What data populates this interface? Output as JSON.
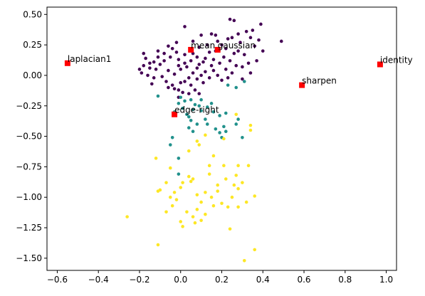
{
  "chart_data": {
    "type": "scatter",
    "title": "",
    "xlabel": "",
    "ylabel": "",
    "xlim": [
      -0.65,
      1.05
    ],
    "ylim": [
      -1.6,
      0.56
    ],
    "xticks": [
      -0.6,
      -0.4,
      -0.2,
      0.0,
      0.2,
      0.4,
      0.6,
      0.8,
      1.0
    ],
    "yticks": [
      -1.5,
      -1.25,
      -1.0,
      -0.75,
      -0.5,
      -0.25,
      0.0,
      0.25,
      0.5
    ],
    "grid": false,
    "legend": "none",
    "colors": {
      "purple": "#440154",
      "teal": "#21918c",
      "yellow": "#fde725",
      "marker": "#ff0000"
    },
    "series": [
      {
        "color": "purple",
        "points": [
          [
            0.24,
            0.46
          ],
          [
            0.26,
            0.45
          ],
          [
            0.39,
            0.42
          ],
          [
            0.35,
            0.37
          ],
          [
            0.49,
            0.28
          ],
          [
            0.15,
            0.34
          ],
          [
            0.1,
            0.33
          ],
          [
            0.02,
            0.4
          ],
          [
            0.17,
            0.33
          ],
          [
            0.25,
            0.31
          ],
          [
            0.28,
            0.34
          ],
          [
            0.32,
            0.36
          ],
          [
            0.2,
            0.25
          ],
          [
            0.18,
            0.28
          ],
          [
            0.22,
            0.22
          ],
          [
            0.28,
            0.2
          ],
          [
            0.31,
            0.17
          ],
          [
            0.36,
            0.24
          ],
          [
            0.4,
            0.2
          ],
          [
            0.33,
            0.1
          ],
          [
            0.3,
            0.07
          ],
          [
            0.37,
            0.12
          ],
          [
            0.34,
            0.02
          ],
          [
            0.3,
            -0.03
          ],
          [
            0.25,
            0.02
          ],
          [
            0.22,
            0.05
          ],
          [
            0.15,
            0.08
          ],
          [
            0.12,
            0.03
          ],
          [
            0.08,
            0.06
          ],
          [
            0.05,
            0.12
          ],
          [
            0.02,
            0.17
          ],
          [
            -0.02,
            0.19
          ],
          [
            -0.05,
            0.15
          ],
          [
            -0.08,
            0.12
          ],
          [
            -0.1,
            0.09
          ],
          [
            -0.12,
            0.05
          ],
          [
            -0.15,
            0.1
          ],
          [
            -0.17,
            0.14
          ],
          [
            -0.11,
            0.2
          ],
          [
            -0.08,
            0.18
          ],
          [
            -0.04,
            0.22
          ],
          [
            -0.01,
            0.13
          ],
          [
            0.03,
            0.07
          ],
          [
            0.06,
            0.02
          ],
          [
            0.09,
            0.09
          ],
          [
            0.12,
            0.14
          ],
          [
            0.16,
            0.13
          ],
          [
            0.19,
            0.1
          ],
          [
            0.21,
            0.15
          ],
          [
            0.24,
            0.12
          ],
          [
            0.27,
            0.08
          ],
          [
            0.26,
            0.18
          ],
          [
            0.14,
            0.19
          ],
          [
            0.09,
            0.23
          ],
          [
            0.06,
            0.18
          ],
          [
            0.0,
            0.05
          ],
          [
            -0.03,
            0.01
          ],
          [
            -0.06,
            0.04
          ],
          [
            -0.09,
            -0.01
          ],
          [
            -0.13,
            -0.02
          ],
          [
            -0.16,
            0.0
          ],
          [
            -0.19,
            0.02
          ],
          [
            -0.14,
            -0.07
          ],
          [
            -0.18,
            0.08
          ],
          [
            -0.07,
            -0.05
          ],
          [
            -0.04,
            -0.08
          ],
          [
            -0.01,
            -0.12
          ],
          [
            0.02,
            -0.05
          ],
          [
            0.05,
            -0.08
          ],
          [
            0.08,
            -0.03
          ],
          [
            0.11,
            -0.06
          ],
          [
            0.14,
            -0.02
          ],
          [
            0.18,
            0.0
          ],
          [
            0.2,
            -0.04
          ],
          [
            0.23,
            -0.02
          ],
          [
            0.16,
            0.04
          ],
          [
            0.1,
            0.0
          ],
          [
            0.04,
            -0.02
          ],
          [
            0.0,
            -0.06
          ],
          [
            -0.03,
            -0.11
          ],
          [
            -0.06,
            -0.1
          ],
          [
            0.01,
            -0.14
          ],
          [
            0.04,
            -0.15
          ],
          [
            0.07,
            -0.12
          ],
          [
            0.09,
            -0.15
          ],
          [
            -0.01,
            -0.18
          ],
          [
            0.06,
            0.28
          ],
          [
            0.13,
            0.25
          ],
          [
            0.17,
            0.2
          ],
          [
            0.23,
            0.3
          ],
          [
            0.29,
            0.27
          ],
          [
            0.34,
            0.31
          ],
          [
            0.38,
            0.29
          ],
          [
            -0.02,
            0.27
          ],
          [
            -0.06,
            0.24
          ],
          [
            -0.11,
            0.15
          ],
          [
            -0.13,
            0.11
          ],
          [
            -0.18,
            0.18
          ],
          [
            -0.2,
            0.05
          ],
          [
            -0.15,
            0.06
          ],
          [
            0.08,
            0.15
          ],
          [
            0.02,
            0.1
          ],
          [
            -0.01,
            0.08
          ],
          [
            0.11,
            0.11
          ]
        ]
      },
      {
        "color": "teal",
        "points": [
          [
            -0.11,
            -0.17
          ],
          [
            0.31,
            -0.05
          ],
          [
            0.23,
            -0.08
          ],
          [
            0.27,
            -0.1
          ],
          [
            -0.01,
            -0.23
          ],
          [
            0.02,
            -0.21
          ],
          [
            0.05,
            -0.2
          ],
          [
            0.07,
            -0.24
          ],
          [
            0.09,
            -0.25
          ],
          [
            0.1,
            -0.29
          ],
          [
            0.13,
            -0.26
          ],
          [
            0.16,
            -0.3
          ],
          [
            0.19,
            -0.33
          ],
          [
            0.22,
            -0.31
          ],
          [
            0.06,
            -0.28
          ],
          [
            0.03,
            -0.32
          ],
          [
            0.01,
            -0.27
          ],
          [
            -0.03,
            -0.3
          ],
          [
            0.05,
            -0.37
          ],
          [
            0.08,
            -0.4
          ],
          [
            0.04,
            -0.43
          ],
          [
            0.06,
            -0.46
          ],
          [
            0.13,
            -0.4
          ],
          [
            0.17,
            -0.44
          ],
          [
            0.19,
            -0.47
          ],
          [
            0.22,
            -0.46
          ],
          [
            0.2,
            -0.51
          ],
          [
            0.3,
            -0.51
          ],
          [
            0.27,
            -0.4
          ],
          [
            0.28,
            -0.36
          ],
          [
            0.21,
            -0.42
          ],
          [
            -0.04,
            -0.51
          ],
          [
            -0.05,
            -0.57
          ],
          [
            -0.01,
            -0.68
          ],
          [
            -0.01,
            -0.81
          ],
          [
            0.1,
            -0.2
          ],
          [
            0.15,
            -0.23
          ],
          [
            0.0,
            -0.18
          ],
          [
            0.04,
            -0.34
          ],
          [
            0.12,
            -0.36
          ]
        ]
      },
      {
        "color": "yellow",
        "points": [
          [
            0.27,
            -0.32
          ],
          [
            0.34,
            -0.41
          ],
          [
            0.34,
            -0.45
          ],
          [
            0.12,
            -0.49
          ],
          [
            0.21,
            -0.52
          ],
          [
            0.08,
            -0.54
          ],
          [
            0.09,
            -0.57
          ],
          [
            0.04,
            -0.62
          ],
          [
            0.16,
            -0.66
          ],
          [
            0.14,
            -0.74
          ],
          [
            -0.12,
            -0.68
          ],
          [
            -0.05,
            -0.76
          ],
          [
            0.14,
            -0.81
          ],
          [
            0.21,
            -0.74
          ],
          [
            0.28,
            -0.74
          ],
          [
            0.33,
            -0.74
          ],
          [
            0.27,
            -0.82
          ],
          [
            0.3,
            -0.88
          ],
          [
            0.28,
            -0.93
          ],
          [
            0.22,
            -0.85
          ],
          [
            0.18,
            -0.9
          ],
          [
            0.12,
            -0.96
          ],
          [
            0.15,
            -1.0
          ],
          [
            0.08,
            -0.98
          ],
          [
            0.06,
            -0.85
          ],
          [
            0.04,
            -0.83
          ],
          [
            0.05,
            -0.87
          ],
          [
            0.01,
            -0.88
          ],
          [
            0.0,
            -0.92
          ],
          [
            -0.03,
            -0.96
          ],
          [
            -0.07,
            -0.88
          ],
          [
            -0.1,
            -0.94
          ],
          [
            -0.11,
            -0.95
          ],
          [
            -0.05,
            -1.0
          ],
          [
            -0.04,
            -1.07
          ],
          [
            -0.07,
            -1.12
          ],
          [
            0.0,
            -1.2
          ],
          [
            0.01,
            -1.24
          ],
          [
            0.03,
            -1.12
          ],
          [
            0.06,
            -1.16
          ],
          [
            0.08,
            -1.1
          ],
          [
            0.1,
            -1.19
          ],
          [
            0.12,
            -1.14
          ],
          [
            0.16,
            -1.07
          ],
          [
            0.2,
            -1.05
          ],
          [
            0.23,
            -1.08
          ],
          [
            0.25,
            -1.0
          ],
          [
            0.28,
            -1.08
          ],
          [
            0.32,
            -1.04
          ],
          [
            0.36,
            -0.99
          ],
          [
            0.24,
            -1.26
          ],
          [
            0.31,
            -1.52
          ],
          [
            0.36,
            -1.43
          ],
          [
            -0.26,
            -1.16
          ],
          [
            -0.11,
            -1.39
          ],
          [
            0.07,
            -1.21
          ],
          [
            0.18,
            -0.95
          ],
          [
            0.26,
            -0.9
          ],
          [
            0.1,
            -1.04
          ],
          [
            -0.02,
            -1.02
          ]
        ]
      }
    ],
    "annotations": [
      {
        "label": "laplacian1",
        "x": -0.55,
        "y": 0.1
      },
      {
        "label": "mean",
        "x": 0.05,
        "y": 0.21
      },
      {
        "label": "gaussian",
        "x": 0.18,
        "y": 0.21
      },
      {
        "label": "identity",
        "x": 0.97,
        "y": 0.09
      },
      {
        "label": "sharpen",
        "x": 0.59,
        "y": -0.08
      },
      {
        "label": "edge-right",
        "x": -0.03,
        "y": -0.32
      }
    ]
  }
}
